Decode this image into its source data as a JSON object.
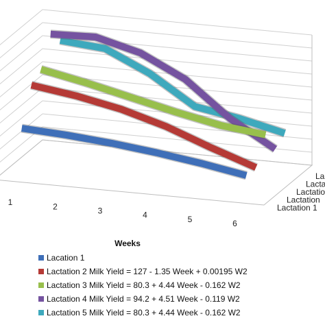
{
  "chart_data": {
    "type": "line",
    "title": "",
    "xlabel": "Weeks",
    "ylabel": "",
    "categories": [
      "1",
      "2",
      "3",
      "4",
      "5",
      "6"
    ],
    "ylim": [
      0,
      100
    ],
    "grid": true,
    "legend_placement": "bottom",
    "series": [
      {
        "name": "Lacation 1",
        "color": "#3f6fb8",
        "values": [
          38,
          36,
          33,
          29,
          24,
          18
        ]
      },
      {
        "name": "Lactation 2 Milk Yield = 127 - 1.35 Week + 0.00195 W2",
        "color": "#b53a36",
        "values": [
          65,
          60,
          53,
          43,
          30,
          18
        ]
      },
      {
        "name": "Lactation 3 Milk Yield = 80.3 + 4.44 Week - 0.162 W2",
        "color": "#98bf4c",
        "values": [
          71,
          64,
          56,
          48,
          41,
          37
        ]
      },
      {
        "name": "Lactation 4 Milk Yield = 94.2 + 4.51 Week - 0.119 W2",
        "color": "#7553a0",
        "values": [
          92,
          93,
          84,
          67,
          40,
          20
        ]
      },
      {
        "name": "Lactation 5 Milk Yield = 80.3 + 4.44 Week - 0.162 W2",
        "color": "#3ea9bd",
        "values": [
          81,
          78,
          62,
          40,
          34,
          26
        ]
      }
    ],
    "depth_labels": [
      "Lactation 1",
      "Lactation",
      "Lactation",
      "Lacta",
      "La"
    ]
  }
}
